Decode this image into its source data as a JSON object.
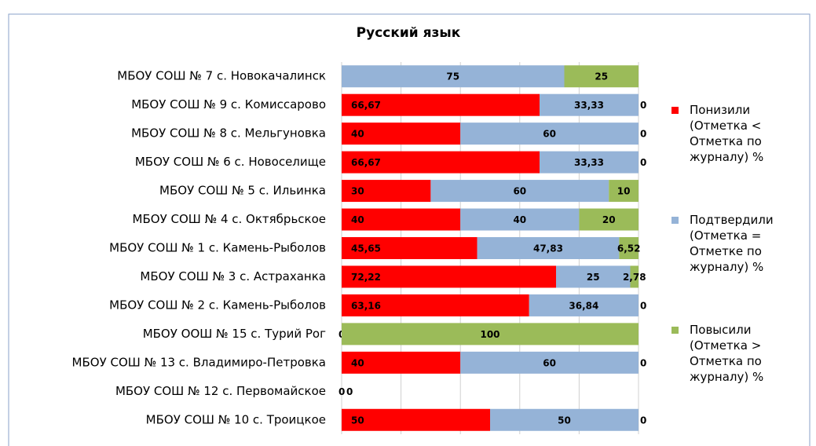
{
  "chart_data": {
    "type": "stacked-bar",
    "orientation": "horizontal",
    "title": "Русский язык",
    "categories": [
      "МБОУ СОШ № 7 с. Новокачалинск",
      "МБОУ СОШ № 9 с. Комиссарово",
      "МБОУ СОШ № 8 с. Мельгуновка",
      "МБОУ СОШ № 6 с. Новоселище",
      "МБОУ СОШ № 5 с. Ильинка",
      "МБОУ СОШ № 4 с. Октябрьское",
      "МБОУ СОШ № 1 с. Камень-Рыболов",
      "МБОУ СОШ № 3 с. Астраханка",
      "МБОУ СОШ № 2 с. Камень-Рыболов",
      "МБОУ ООШ № 15 с. Турий Рог",
      "МБОУ СОШ № 13 с. Владимиро-Петровка",
      "МБОУ СОШ № 12 с. Первомайское",
      "МБОУ СОШ № 10 с. Троицкое"
    ],
    "series": [
      {
        "name": "Понизили (Отметка < Отметка по журналу) %",
        "color": "#ff0000",
        "values": [
          0,
          66.67,
          40,
          66.67,
          30,
          40,
          45.65,
          72.22,
          63.16,
          0,
          40,
          0,
          50
        ],
        "value_labels": [
          "0",
          "66,67",
          "40",
          "66,67",
          "30",
          "40",
          "45,65",
          "72,22",
          "63,16",
          "0",
          "40",
          "0",
          "50"
        ]
      },
      {
        "name": "Подтвердили (Отметка = Отметке по журналу) %",
        "color": "#95b3d7",
        "values": [
          75,
          33.33,
          60,
          33.33,
          60,
          40,
          47.83,
          25,
          36.84,
          0,
          60,
          0,
          50
        ],
        "value_labels": [
          "75",
          "33,33",
          "60",
          "33,33",
          "60",
          "40",
          "47,83",
          "25",
          "36,84",
          "0",
          "60",
          "0",
          "50"
        ]
      },
      {
        "name": "Повысили (Отметка > Отметка по журналу) %",
        "color": "#9bbb59",
        "values": [
          25,
          0,
          0,
          0,
          10,
          20,
          6.52,
          2.78,
          0,
          100,
          0,
          null,
          0
        ],
        "value_labels": [
          "25",
          "0",
          "0",
          "0",
          "10",
          "20",
          "6,52",
          "2,78",
          "0",
          "100",
          "0",
          null,
          "0"
        ]
      }
    ],
    "xlim": [
      0,
      100
    ],
    "xticks": [
      0,
      20,
      40,
      60,
      80,
      100
    ],
    "grid": true,
    "legend": "right"
  }
}
